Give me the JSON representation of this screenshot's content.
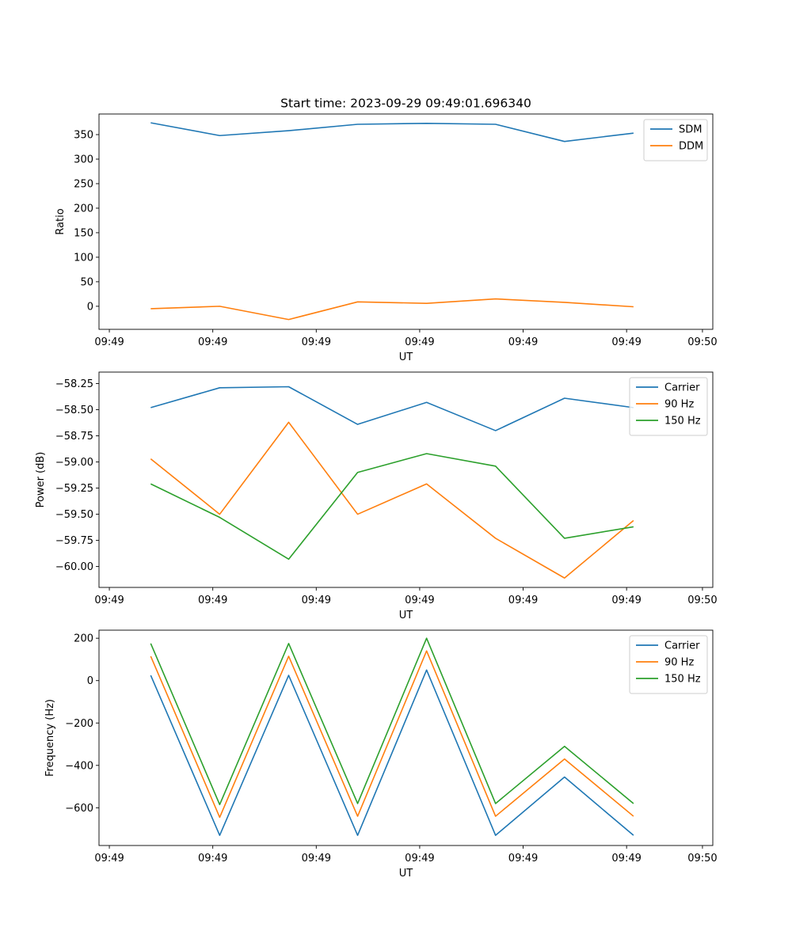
{
  "colors": {
    "blue": "#1f77b4",
    "orange": "#ff7f0e",
    "green": "#2ca02c",
    "axis": "#000000",
    "legend_border": "#cccccc",
    "background": "#ffffff"
  },
  "figure_title": "Start time: 2023-09-29 09:49:01.696340",
  "chart_data": [
    {
      "type": "line",
      "title": "Start time: 2023-09-29 09:49:01.696340",
      "xlabel": "UT",
      "ylabel": "Ratio",
      "x": [
        1,
        2,
        3,
        4,
        5,
        6,
        7,
        8
      ],
      "xlim": [
        0.25,
        9.15
      ],
      "xticks": [
        0.4,
        1.9,
        3.4,
        4.9,
        6.4,
        7.9,
        9.0
      ],
      "xtick_labels": [
        "09:49",
        "09:49",
        "09:49",
        "09:49",
        "09:49",
        "09:49",
        "09:50"
      ],
      "ylim": [
        -47,
        392
      ],
      "yticks": [
        0,
        50,
        100,
        150,
        200,
        250,
        300,
        350
      ],
      "ytick_labels": [
        "0",
        "50",
        "100",
        "150",
        "200",
        "250",
        "300",
        "350"
      ],
      "legend_position": "top-right",
      "series": [
        {
          "name": "SDM",
          "color": "#1f77b4",
          "values": [
            374,
            348,
            358,
            371,
            373,
            371,
            336,
            353
          ]
        },
        {
          "name": "DDM",
          "color": "#ff7f0e",
          "values": [
            -5,
            0,
            -27,
            9,
            6,
            15,
            8,
            -1
          ]
        }
      ]
    },
    {
      "type": "line",
      "xlabel": "UT",
      "ylabel": "Power (dB)",
      "x": [
        1,
        2,
        3,
        4,
        5,
        6,
        7,
        8
      ],
      "xlim": [
        0.25,
        9.15
      ],
      "xticks": [
        0.4,
        1.9,
        3.4,
        4.9,
        6.4,
        7.9,
        9.0
      ],
      "xtick_labels": [
        "09:49",
        "09:49",
        "09:49",
        "09:49",
        "09:49",
        "09:49",
        "09:50"
      ],
      "ylim": [
        -60.2,
        -58.14
      ],
      "yticks": [
        -60.0,
        -59.75,
        -59.5,
        -59.25,
        -59.0,
        -58.75,
        -58.5,
        -58.25
      ],
      "ytick_labels": [
        "−60.00",
        "−59.75",
        "−59.50",
        "−59.25",
        "−59.00",
        "−58.75",
        "−58.50",
        "−58.25"
      ],
      "legend_position": "top-right",
      "series": [
        {
          "name": "Carrier",
          "color": "#1f77b4",
          "values": [
            -58.48,
            -58.29,
            -58.28,
            -58.64,
            -58.43,
            -58.7,
            -58.39,
            -58.48
          ]
        },
        {
          "name": "90 Hz",
          "color": "#ff7f0e",
          "values": [
            -58.97,
            -59.5,
            -58.62,
            -59.5,
            -59.21,
            -59.73,
            -60.11,
            -59.56
          ]
        },
        {
          "name": "150 Hz",
          "color": "#2ca02c",
          "values": [
            -59.21,
            -59.53,
            -59.93,
            -59.1,
            -58.92,
            -59.04,
            -59.73,
            -59.62
          ]
        }
      ]
    },
    {
      "type": "line",
      "xlabel": "UT",
      "ylabel": "Frequency (Hz)",
      "x": [
        1,
        2,
        3,
        4,
        5,
        6,
        7,
        8
      ],
      "xlim": [
        0.25,
        9.15
      ],
      "xticks": [
        0.4,
        1.9,
        3.4,
        4.9,
        6.4,
        7.9,
        9.0
      ],
      "xtick_labels": [
        "09:49",
        "09:49",
        "09:49",
        "09:49",
        "09:49",
        "09:49",
        "09:50"
      ],
      "ylim": [
        -778,
        238
      ],
      "yticks": [
        -600,
        -400,
        -200,
        0,
        200
      ],
      "ytick_labels": [
        "−600",
        "−400",
        "−200",
        "0",
        "200"
      ],
      "legend_position": "top-right",
      "series": [
        {
          "name": "Carrier",
          "color": "#1f77b4",
          "values": [
            25,
            -730,
            25,
            -730,
            50,
            -730,
            -455,
            -730
          ]
        },
        {
          "name": "90 Hz",
          "color": "#ff7f0e",
          "values": [
            115,
            -645,
            115,
            -640,
            140,
            -640,
            -370,
            -640
          ]
        },
        {
          "name": "150 Hz",
          "color": "#2ca02c",
          "values": [
            175,
            -585,
            175,
            -580,
            200,
            -580,
            -310,
            -580
          ]
        }
      ]
    }
  ]
}
